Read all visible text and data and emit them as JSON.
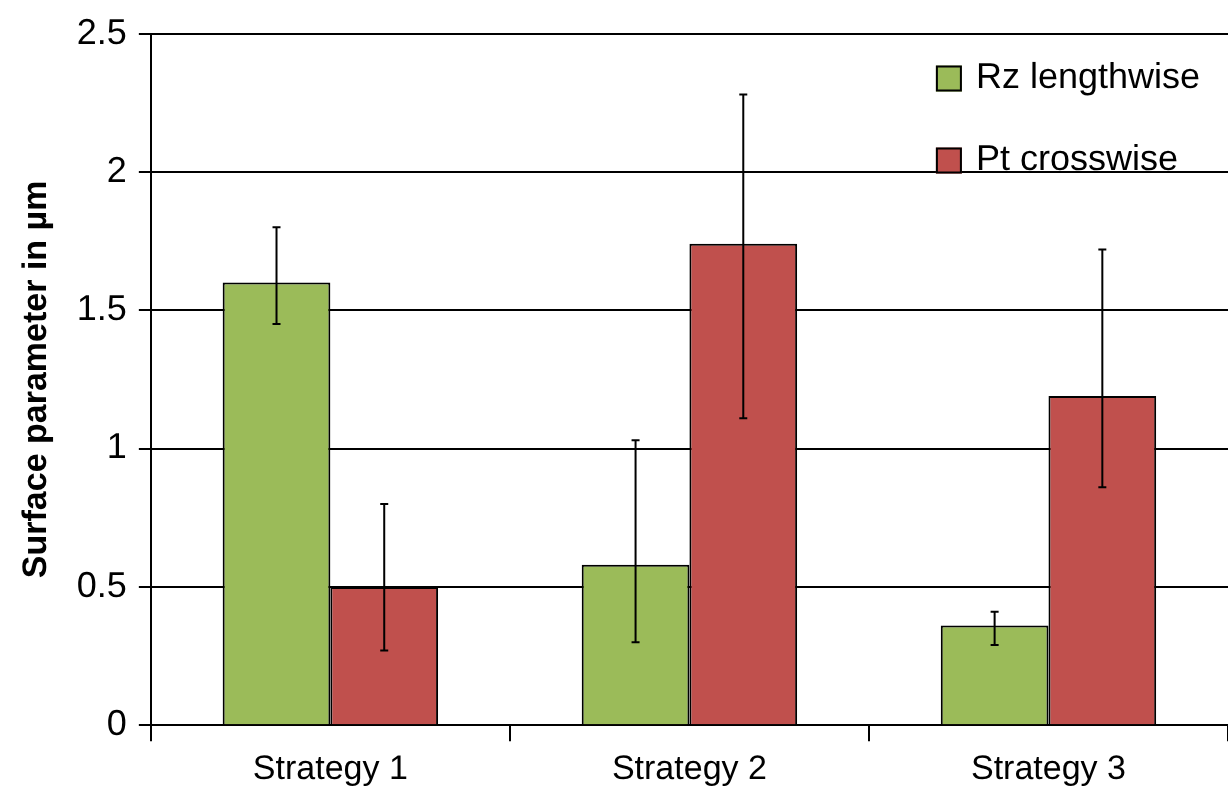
{
  "chart_data": {
    "type": "bar",
    "ylabel": "Surface parameter in µm",
    "categories": [
      "Strategy 1",
      "Strategy 2",
      "Strategy 3"
    ],
    "series": [
      {
        "name": "Rz lengthwise",
        "color": "#9bbb59",
        "values": [
          1.6,
          0.58,
          0.36
        ],
        "errors": [
          [
            1.45,
            1.8
          ],
          [
            0.3,
            1.03
          ],
          [
            0.29,
            0.41
          ]
        ]
      },
      {
        "name": "Pt crosswise",
        "color": "#c0504d",
        "values": [
          0.5,
          1.74,
          1.19
        ],
        "errors": [
          [
            0.27,
            0.8
          ],
          [
            1.11,
            2.28
          ],
          [
            0.86,
            1.72
          ]
        ]
      }
    ],
    "ylim": [
      0,
      2.5
    ],
    "yticks": [
      0,
      0.5,
      1,
      1.5,
      2,
      2.5
    ],
    "grid": "y",
    "legend": "top right"
  }
}
